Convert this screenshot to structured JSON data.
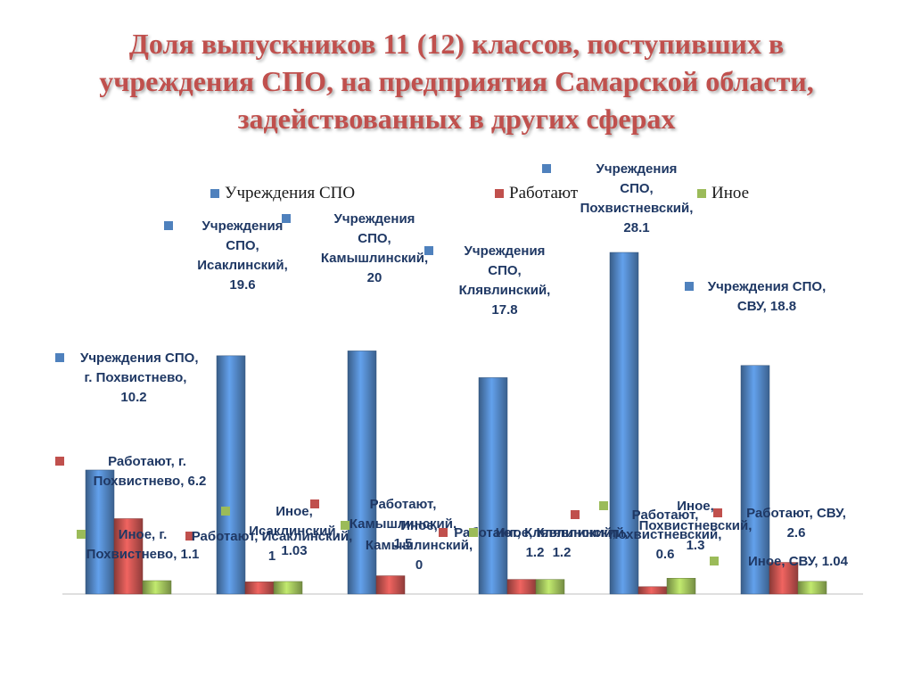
{
  "title": "Доля выпускников 11 (12) классов, поступивших в учреждения СПО, на предприятия Самарской области, задействованных в других сферах",
  "chart_data": {
    "type": "bar",
    "categories": [
      "г. Похвистнево",
      "Исаклинский",
      "Камышлинский",
      "Клявлинский",
      "Похвистневский",
      "СВУ"
    ],
    "series": [
      {
        "name": "Учреждения СПО",
        "values": [
          10.2,
          19.6,
          20,
          17.8,
          28.1,
          18.8
        ],
        "color": "#4f81bd"
      },
      {
        "name": "Работают",
        "values": [
          6.2,
          1,
          1.5,
          1.2,
          0.6,
          2.6
        ],
        "color": "#c0504d"
      },
      {
        "name": "Иное",
        "values": [
          1.1,
          1.03,
          0,
          1.2,
          1.3,
          1.04
        ],
        "color": "#9bbb59"
      }
    ],
    "ylim": [
      0,
      30
    ],
    "grid": false,
    "legend": "top",
    "data_labels": [
      [
        "Учреждения СПО, г. Похвистнево, 10.2",
        "Учреждения СПО, Исаклинский, 19.6",
        "Учреждения СПО, Камышлинский, 20",
        "Учреждения СПО, Клявлинский, 17.8",
        "Учреждения СПО, Похвистневский, 28.1",
        "Учреждения СПО, СВУ, 18.8"
      ],
      [
        "Работают, г. Похвистнево, 6.2",
        "Работают, Исаклинский, 1",
        "Работают, Камышлинский, 1.5",
        "Работают, Клявлинский, 1.2",
        "Работают, Похвистневский, 0.6",
        "Работают, СВУ, 2.6"
      ],
      [
        "Иное, г. Похвистнево, 1.1",
        "Иное, Исаклинский, 1.03",
        "Иное, Камышлинский, 0",
        "Иное, Клявлинский, 1.2",
        "Иное, Похвистневский, 1.3",
        "Иное, СВУ, 1.04"
      ]
    ]
  }
}
